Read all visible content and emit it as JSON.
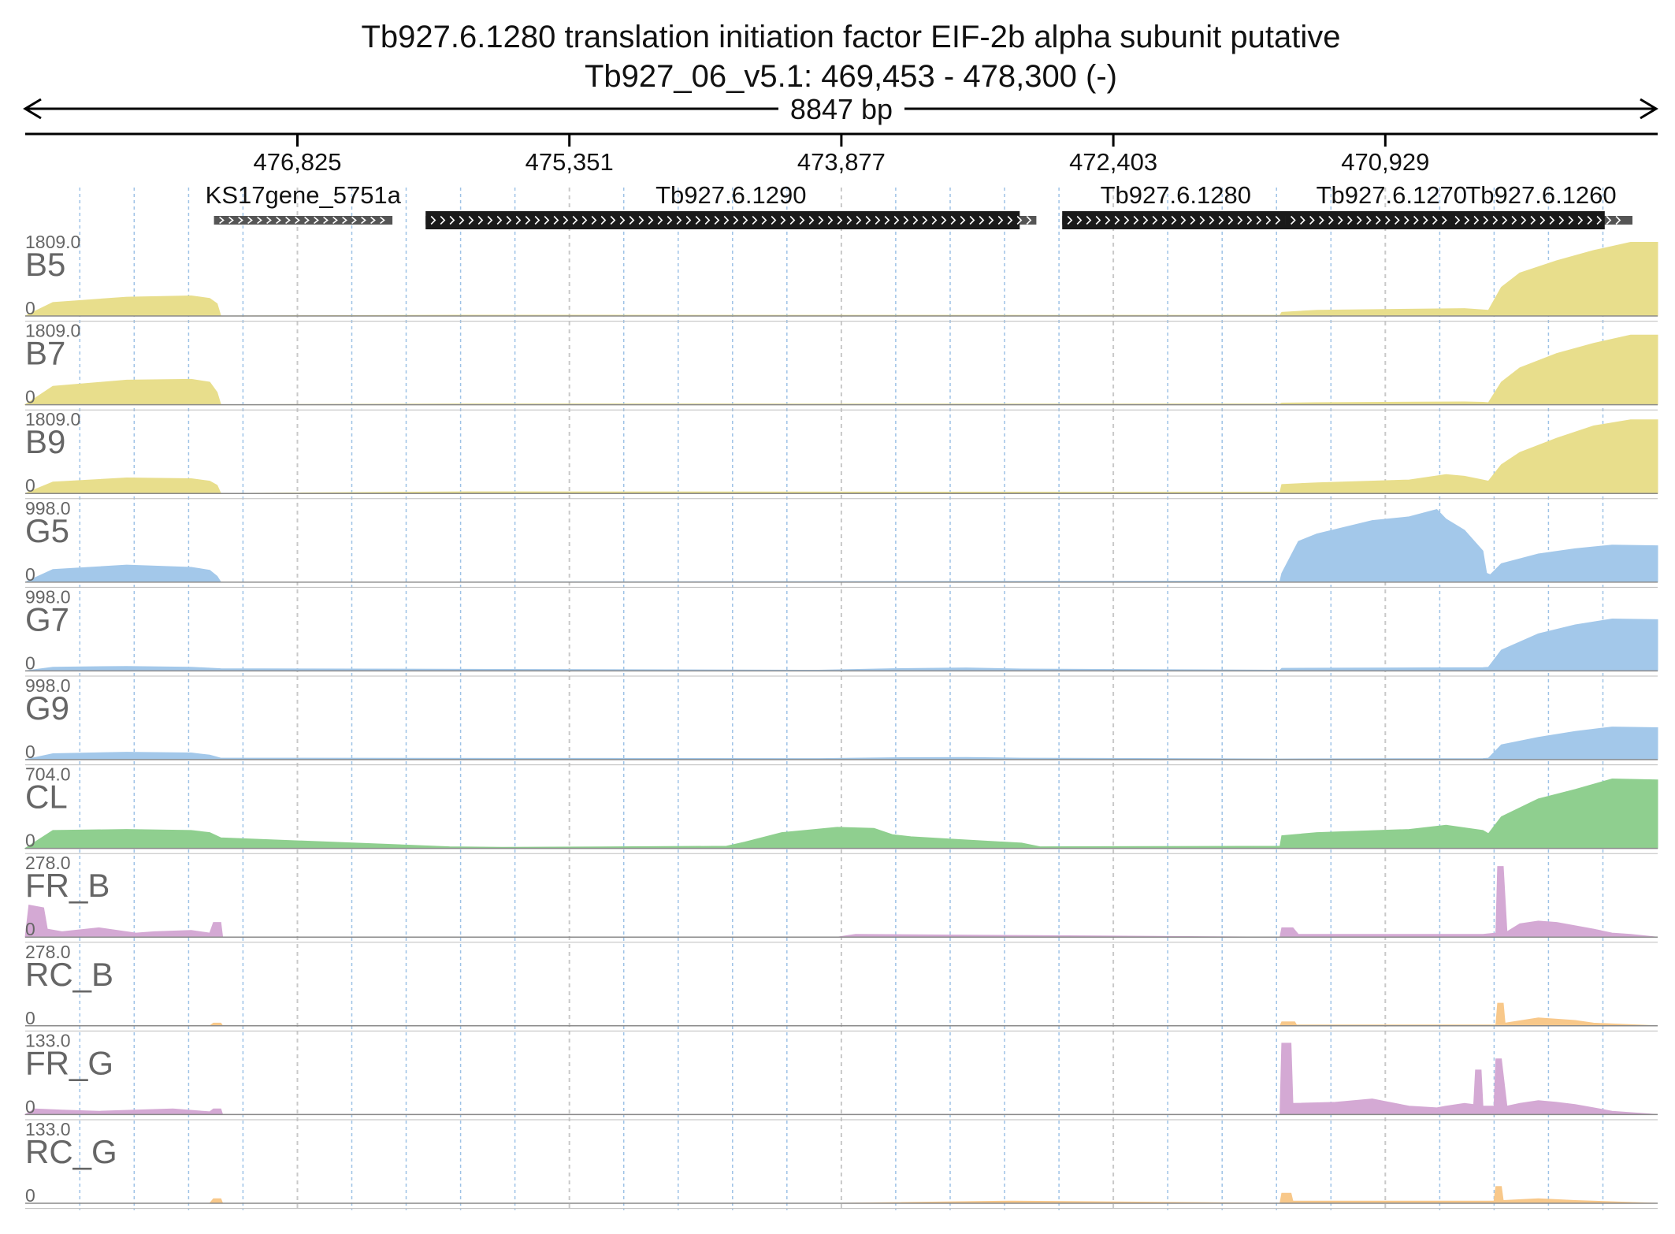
{
  "header": {
    "title_line1": "Tb927.6.1280  translation initiation factor EIF-2b alpha subunit  putative",
    "title_line2": "Tb927_06_v5.1: 469,453 - 478,300 (-)",
    "span_label": "8847 bp"
  },
  "chart_data": {
    "type": "area",
    "title": "Tb927.6.1280  translation initiation factor EIF-2b alpha subunit  putative",
    "subtitle": "Tb927_06_v5.1: 469,453 - 478,300 (-)",
    "region": {
      "chrom": "Tb927_06_v5.1",
      "start": 469453,
      "end": 478300,
      "strand": "-",
      "span_bp": 8847
    },
    "x_direction": "reversed",
    "ticks": [
      {
        "pos": 476825,
        "label": "476,825"
      },
      {
        "pos": 475351,
        "label": "475,351"
      },
      {
        "pos": 473877,
        "label": "473,877"
      },
      {
        "pos": 472403,
        "label": "472,403"
      },
      {
        "pos": 470929,
        "label": "470,929"
      }
    ],
    "genes": [
      {
        "name": "KS17gene_5751a",
        "start": 476310,
        "end": 477277,
        "style": "thin"
      },
      {
        "name": "Tb927.6.1290",
        "start": 472820,
        "end": 476130,
        "thick_start": 472910,
        "thick_end": 476130,
        "style": "thick"
      },
      {
        "name": "Tb927.6.1280",
        "start": 471450,
        "end": 472680,
        "style": "thick"
      },
      {
        "name": "Tb927.6.1270",
        "start": 470320,
        "end": 471470,
        "thick_start": 470440,
        "thick_end": 471470,
        "style": "thick"
      },
      {
        "name": "Tb927.6.1260",
        "start": 469590,
        "end": 470580,
        "thick_start": 469740,
        "thick_end": 470580,
        "style": "thick"
      }
    ],
    "grid": true,
    "tracks": [
      {
        "name": "B5",
        "max": 1809.0,
        "max_label": "1809.0",
        "zero_label": "0",
        "color": "#e8de8c",
        "x": [
          478300,
          478150,
          477750,
          477400,
          477300,
          477260,
          477240,
          475900,
          472600,
          471500,
          471490,
          471300,
          470500,
          470400,
          470370,
          470300,
          470200,
          470000,
          469800,
          469600,
          469453
        ],
        "y": [
          0,
          330,
          460,
          490,
          430,
          300,
          0,
          20,
          15,
          20,
          90,
          140,
          180,
          150,
          140,
          700,
          1050,
          1350,
          1600,
          1800,
          1800
        ]
      },
      {
        "name": "B7",
        "max": 1809.0,
        "max_label": "1809.0",
        "zero_label": "0",
        "color": "#e8de8c",
        "x": [
          478300,
          478150,
          477750,
          477400,
          477300,
          477260,
          477240,
          475900,
          472600,
          471500,
          471490,
          471300,
          470500,
          470400,
          470370,
          470300,
          470200,
          470000,
          469800,
          469600,
          469453
        ],
        "y": [
          0,
          450,
          600,
          620,
          550,
          300,
          0,
          20,
          15,
          20,
          40,
          50,
          70,
          60,
          50,
          550,
          900,
          1250,
          1500,
          1700,
          1700
        ]
      },
      {
        "name": "B9",
        "max": 1809.0,
        "max_label": "1809.0",
        "zero_label": "0",
        "color": "#e8de8c",
        "x": [
          478300,
          478150,
          477750,
          477400,
          477300,
          477260,
          477240,
          475900,
          472600,
          471500,
          471490,
          471300,
          470800,
          470600,
          470500,
          470400,
          470370,
          470300,
          470200,
          470000,
          469800,
          469600,
          469453
        ],
        "y": [
          0,
          280,
          380,
          360,
          300,
          200,
          0,
          40,
          30,
          30,
          220,
          260,
          330,
          460,
          420,
          330,
          300,
          700,
          1000,
          1350,
          1650,
          1800,
          1800
        ]
      },
      {
        "name": "G5",
        "max": 998.0,
        "max_label": "998.0",
        "zero_label": "0",
        "color": "#a3c8ea",
        "x": [
          478300,
          478150,
          477750,
          477400,
          477300,
          477260,
          477240,
          471500,
          471490,
          471400,
          471300,
          471000,
          470800,
          470650,
          470600,
          470500,
          470400,
          470380,
          470360,
          470300,
          470100,
          469900,
          469700,
          469453
        ],
        "y": [
          0,
          170,
          230,
          200,
          160,
          80,
          0,
          15,
          120,
          550,
          650,
          830,
          880,
          980,
          850,
          700,
          420,
          120,
          100,
          250,
          380,
          450,
          500,
          490
        ]
      },
      {
        "name": "G7",
        "max": 998.0,
        "max_label": "998.0",
        "zero_label": "0",
        "color": "#a3c8ea",
        "x": [
          478300,
          478150,
          477750,
          477400,
          477240,
          474000,
          473600,
          473200,
          472900,
          471500,
          471490,
          470400,
          470370,
          470300,
          470100,
          469900,
          469700,
          469453
        ],
        "y": [
          0,
          50,
          60,
          50,
          30,
          10,
          30,
          40,
          25,
          10,
          35,
          45,
          50,
          280,
          500,
          620,
          700,
          690
        ]
      },
      {
        "name": "G9",
        "max": 998.0,
        "max_label": "998.0",
        "zero_label": "0",
        "color": "#a3c8ea",
        "x": [
          478300,
          478150,
          477750,
          477400,
          477300,
          477240,
          474000,
          473600,
          473200,
          472900,
          471500,
          470400,
          470370,
          470300,
          470100,
          469900,
          469700,
          469453
        ],
        "y": [
          0,
          80,
          100,
          90,
          60,
          20,
          15,
          25,
          30,
          20,
          10,
          15,
          20,
          200,
          300,
          380,
          440,
          430
        ]
      },
      {
        "name": "CL",
        "max": 704.0,
        "max_label": "704.0",
        "zero_label": "0",
        "color": "#8fcf8f",
        "x": [
          478300,
          478150,
          477750,
          477400,
          477300,
          477240,
          476000,
          475700,
          474500,
          474400,
          474200,
          473900,
          473700,
          473600,
          473500,
          473300,
          472900,
          472800,
          471500,
          471490,
          471300,
          470800,
          470600,
          470400,
          470370,
          470300,
          470100,
          469900,
          469700,
          469453
        ],
        "y": [
          0,
          170,
          180,
          170,
          150,
          100,
          15,
          10,
          20,
          60,
          150,
          200,
          190,
          130,
          110,
          90,
          50,
          15,
          20,
          120,
          150,
          180,
          220,
          170,
          140,
          300,
          470,
          560,
          660,
          650
        ]
      },
      {
        "name": "FR_B",
        "max": 278.0,
        "max_label": "278.0",
        "zero_label": "0",
        "color": "#d4a9d4",
        "x": [
          478300,
          478280,
          478200,
          478180,
          478100,
          477900,
          477700,
          477600,
          477400,
          477300,
          477280,
          477240,
          477230,
          473900,
          473800,
          471500,
          471490,
          471430,
          471400,
          471200,
          470400,
          470330,
          470320,
          470290,
          470270,
          470200,
          470100,
          470000,
          469800,
          469700,
          469600,
          469453
        ],
        "y": [
          0,
          120,
          110,
          30,
          20,
          35,
          15,
          20,
          25,
          15,
          55,
          55,
          0,
          0,
          10,
          0,
          35,
          35,
          10,
          10,
          10,
          15,
          265,
          265,
          20,
          50,
          60,
          55,
          30,
          15,
          10,
          0
        ]
      },
      {
        "name": "RC_B",
        "max": 278.0,
        "max_label": "278.0",
        "zero_label": "0",
        "color": "#f8c88a",
        "x": [
          478300,
          477300,
          477280,
          477240,
          477230,
          471500,
          471490,
          471420,
          471410,
          470330,
          470320,
          470290,
          470280,
          470100,
          469900,
          469800,
          469453
        ],
        "y": [
          0,
          0,
          10,
          10,
          0,
          0,
          15,
          15,
          3,
          3,
          85,
          85,
          10,
          30,
          20,
          10,
          0
        ]
      },
      {
        "name": "FR_G",
        "max": 133.0,
        "max_label": "133.0",
        "zero_label": "0",
        "color": "#d4a9d4",
        "x": [
          478300,
          478250,
          478100,
          477900,
          477500,
          477300,
          477280,
          477240,
          477230,
          471500,
          471490,
          471440,
          471430,
          471200,
          471000,
          470800,
          470650,
          470600,
          470500,
          470450,
          470440,
          470410,
          470400,
          470340,
          470330,
          470300,
          470270,
          470200,
          470100,
          470000,
          469900,
          469800,
          469700,
          469453
        ],
        "y": [
          0,
          10,
          8,
          6,
          10,
          5,
          10,
          10,
          0,
          0,
          128,
          128,
          20,
          22,
          28,
          15,
          12,
          15,
          20,
          18,
          80,
          80,
          15,
          15,
          100,
          100,
          15,
          20,
          25,
          22,
          18,
          12,
          6,
          0
        ]
      },
      {
        "name": "RC_G",
        "max": 133.0,
        "max_label": "133.0",
        "zero_label": "0",
        "color": "#f8c88a",
        "x": [
          478300,
          477300,
          477280,
          477240,
          477230,
          473900,
          472950,
          471500,
          471490,
          471440,
          471430,
          470340,
          470330,
          470300,
          470290,
          470100,
          469900,
          469453
        ],
        "y": [
          0,
          0,
          8,
          8,
          0,
          0,
          4,
          0,
          18,
          18,
          4,
          4,
          30,
          30,
          5,
          8,
          5,
          0
        ]
      }
    ]
  }
}
